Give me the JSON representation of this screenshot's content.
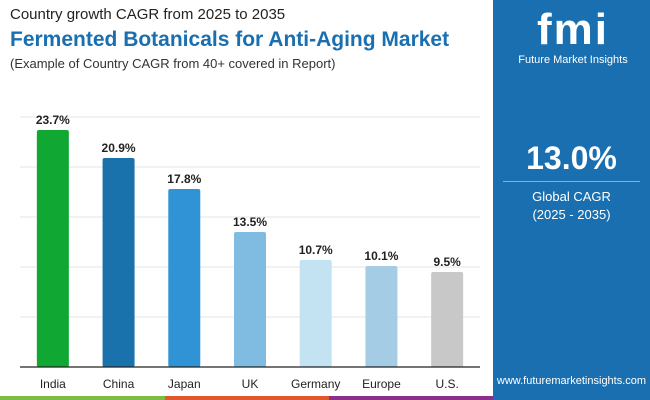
{
  "header": {
    "subtitle": "Country growth CAGR from 2025 to 2035",
    "title": "Fermented Botanicals for Anti-Aging Market",
    "note": "(Example of Country CAGR from 40+ covered in Report)"
  },
  "panel": {
    "logo_text": "fmi",
    "brand": "Future Market Insights",
    "value": "13.0%",
    "label": "Global CAGR",
    "period": "(2025 - 2035)",
    "url": "www.futuremarketinsights.com",
    "color": "#1a6fb0"
  },
  "chart_data": {
    "type": "bar",
    "categories": [
      "India",
      "China",
      "Japan",
      "UK",
      "Germany",
      "Europe",
      "U.S."
    ],
    "values": [
      23.7,
      20.9,
      17.8,
      13.5,
      10.7,
      10.1,
      9.5
    ],
    "labels": [
      "23.7%",
      "20.9%",
      "17.8%",
      "13.5%",
      "10.7%",
      "10.1%",
      "9.5%"
    ],
    "colors": [
      "#10a832",
      "#1a72ad",
      "#3093d6",
      "#80bce2",
      "#c3e2f2",
      "#a4cce4",
      "#c8c8c8"
    ],
    "ylim": [
      0,
      25
    ],
    "grid": true
  }
}
